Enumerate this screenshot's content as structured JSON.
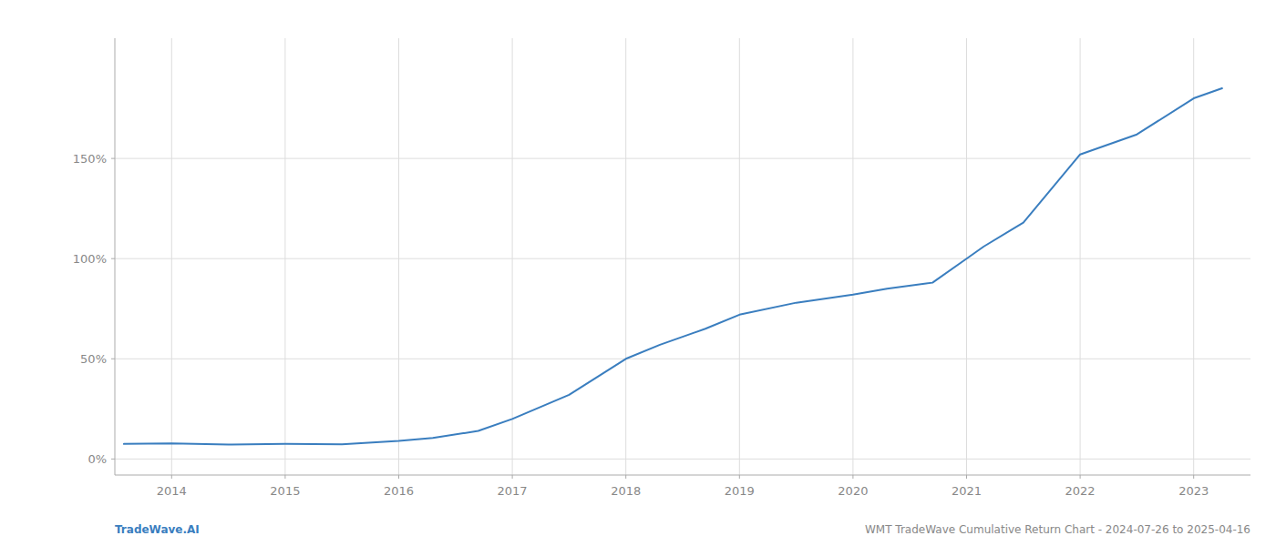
{
  "chart_data": {
    "type": "line",
    "x": [
      2013.58,
      2014.0,
      2014.5,
      2015.0,
      2015.5,
      2016.0,
      2016.3,
      2016.7,
      2017.0,
      2017.5,
      2018.0,
      2018.3,
      2018.7,
      2019.0,
      2019.5,
      2020.0,
      2020.3,
      2020.7,
      2021.0,
      2021.15,
      2021.5,
      2022.0,
      2022.5,
      2023.0,
      2023.25
    ],
    "values": [
      7.5,
      7.8,
      7.2,
      7.5,
      7.3,
      9.0,
      10.5,
      14,
      20,
      32,
      50,
      57,
      65,
      72,
      78,
      82,
      85,
      88,
      100,
      106,
      118,
      152,
      162,
      180,
      185
    ],
    "color": "#3a7ebf",
    "xlim": [
      2013.5,
      2023.5
    ],
    "ylim": [
      -8,
      210
    ],
    "xticks": [
      2014,
      2015,
      2016,
      2017,
      2018,
      2019,
      2020,
      2021,
      2022,
      2023
    ],
    "yticks": [
      {
        "value": 0,
        "label": "0%"
      },
      {
        "value": 50,
        "label": "50%"
      },
      {
        "value": 100,
        "label": "100%"
      },
      {
        "value": 150,
        "label": "150%"
      }
    ],
    "grid": true,
    "annotations": [
      "TradeWave.AI",
      "WMT TradeWave Cumulative Return Chart - 2024-07-26 to 2025-04-16"
    ]
  }
}
